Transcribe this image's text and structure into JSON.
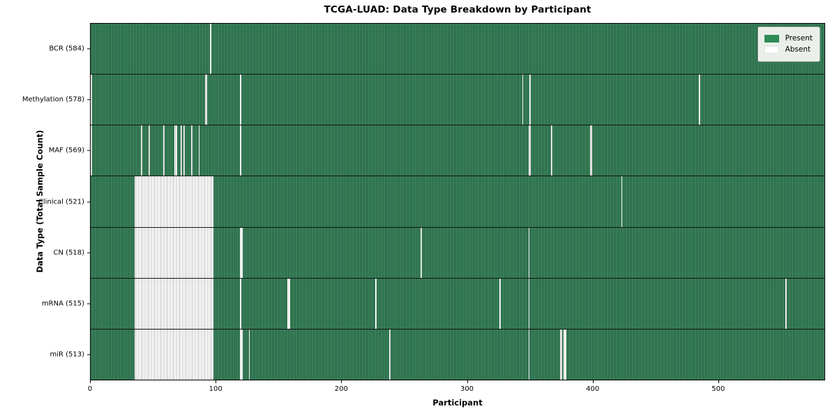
{
  "title": "TCGA-LUAD: Data Type Breakdown by Participant",
  "xlabel": "Participant",
  "ylabel": "Data Type (Total Sample Count)",
  "legend": {
    "present_label": "Present",
    "absent_label": "Absent"
  },
  "colors": {
    "present": "#2e8b57",
    "present_stripe_light": "#418c64",
    "present_stripe_dark": "#235d3e",
    "absent": "#ffffff",
    "absent_stripe": "#bfbfbf",
    "legend_bg": "#e9efe9"
  },
  "chart_data": {
    "type": "heatmap",
    "title": "TCGA-LUAD: Data Type Breakdown by Participant",
    "xlabel": "Participant",
    "ylabel": "Data Type (Total Sample Count)",
    "legend_entries": [
      "Present",
      "Absent"
    ],
    "legend_position": "upper right",
    "n_participants": 585,
    "x_ticks": [
      0,
      100,
      200,
      300,
      400,
      500
    ],
    "x_range": [
      0,
      585
    ],
    "grid": false,
    "rows": [
      {
        "name": "BCR",
        "label": "BCR (584)",
        "present_count": 584,
        "absent_participants": [
          [
            95,
            95
          ]
        ]
      },
      {
        "name": "Methylation",
        "label": "Methylation (578)",
        "present_count": 578,
        "absent_participants": [
          [
            0,
            0
          ],
          [
            91,
            92
          ],
          [
            119,
            119
          ],
          [
            344,
            344
          ],
          [
            350,
            350
          ],
          [
            485,
            485
          ]
        ]
      },
      {
        "name": "MAF",
        "label": "MAF (569)",
        "present_count": 569,
        "absent_participants": [
          [
            0,
            0
          ],
          [
            40,
            40
          ],
          [
            46,
            46
          ],
          [
            58,
            58
          ],
          [
            67,
            68
          ],
          [
            72,
            72
          ],
          [
            74,
            74
          ],
          [
            80,
            80
          ],
          [
            86,
            86
          ],
          [
            119,
            119
          ],
          [
            349,
            350
          ],
          [
            367,
            367
          ],
          [
            398,
            399
          ]
        ]
      },
      {
        "name": "Clinical",
        "label": "Clinical (521)",
        "present_count": 521,
        "absent_participants": [
          [
            35,
            97
          ],
          [
            423,
            423
          ]
        ]
      },
      {
        "name": "CN",
        "label": "CN (518)",
        "present_count": 518,
        "absent_participants": [
          [
            35,
            97
          ],
          [
            119,
            120
          ],
          [
            263,
            263
          ],
          [
            349,
            349
          ]
        ]
      },
      {
        "name": "mRNA",
        "label": "mRNA (515)",
        "present_count": 515,
        "absent_participants": [
          [
            35,
            97
          ],
          [
            119,
            119
          ],
          [
            157,
            158
          ],
          [
            227,
            227
          ],
          [
            326,
            326
          ],
          [
            349,
            349
          ],
          [
            554,
            554
          ]
        ]
      },
      {
        "name": "miR",
        "label": "miR (513)",
        "present_count": 513,
        "absent_participants": [
          [
            35,
            97
          ],
          [
            119,
            120
          ],
          [
            126,
            126
          ],
          [
            238,
            238
          ],
          [
            349,
            349
          ],
          [
            374,
            375
          ],
          [
            377,
            378
          ]
        ]
      }
    ]
  }
}
